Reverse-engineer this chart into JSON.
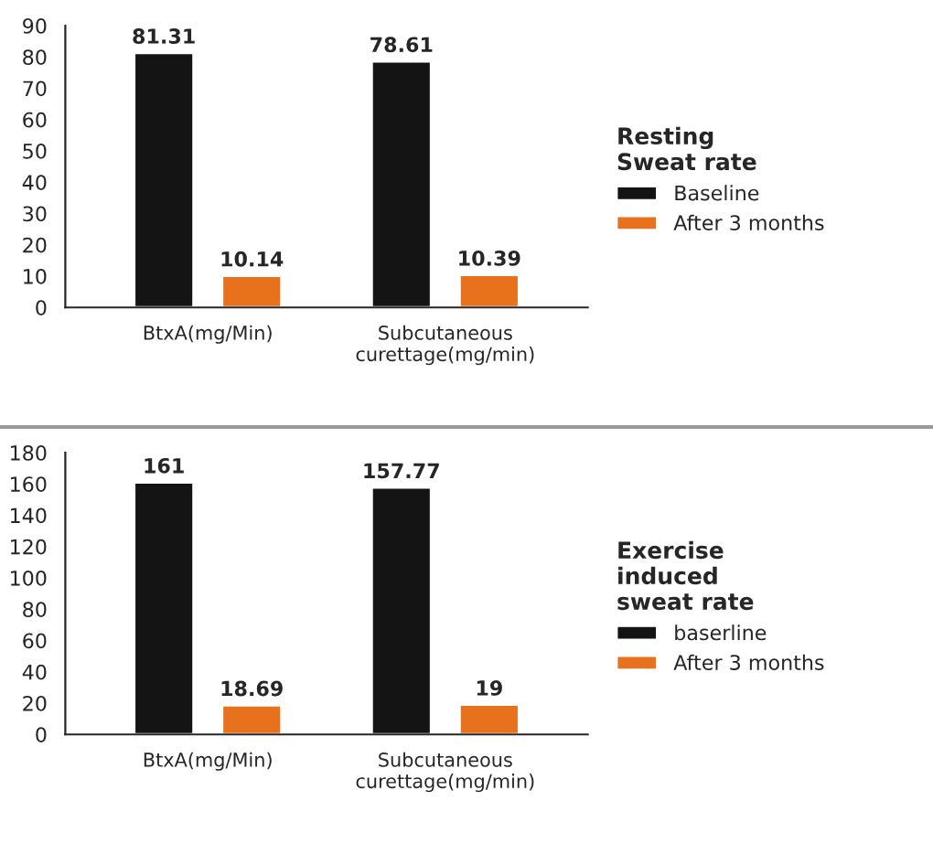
{
  "chart_data": [
    {
      "type": "bar",
      "categories": [
        "BtxA(mg/Min)",
        "Subcutaneous curettage(mg/min)"
      ],
      "legend_title": "Resting\nSweat rate",
      "series": [
        {
          "name": "Baseline",
          "color": "#141414",
          "values": [
            81.31,
            78.61
          ]
        },
        {
          "name": "After 3 months",
          "color": "#e8711e",
          "values": [
            10.14,
            10.39
          ]
        }
      ],
      "ylim": [
        0,
        90
      ],
      "yticks": [
        0,
        10,
        20,
        30,
        40,
        50,
        60,
        70,
        80,
        90
      ],
      "data_labels": true,
      "grid": false,
      "legend": "right"
    },
    {
      "type": "bar",
      "categories": [
        "BtxA(mg/Min)",
        "Subcutaneous curettage(mg/min)"
      ],
      "legend_title": "Exercise\ninduced\nsweat rate",
      "series": [
        {
          "name": "baserline",
          "color": "#141414",
          "values": [
            161,
            157.77
          ]
        },
        {
          "name": "After 3 months",
          "color": "#e8711e",
          "values": [
            18.69,
            19
          ]
        }
      ],
      "ylim": [
        0,
        180
      ],
      "yticks": [
        0,
        20,
        40,
        60,
        80,
        100,
        120,
        140,
        160,
        180
      ],
      "data_labels": true,
      "grid": false,
      "legend": "right"
    }
  ]
}
